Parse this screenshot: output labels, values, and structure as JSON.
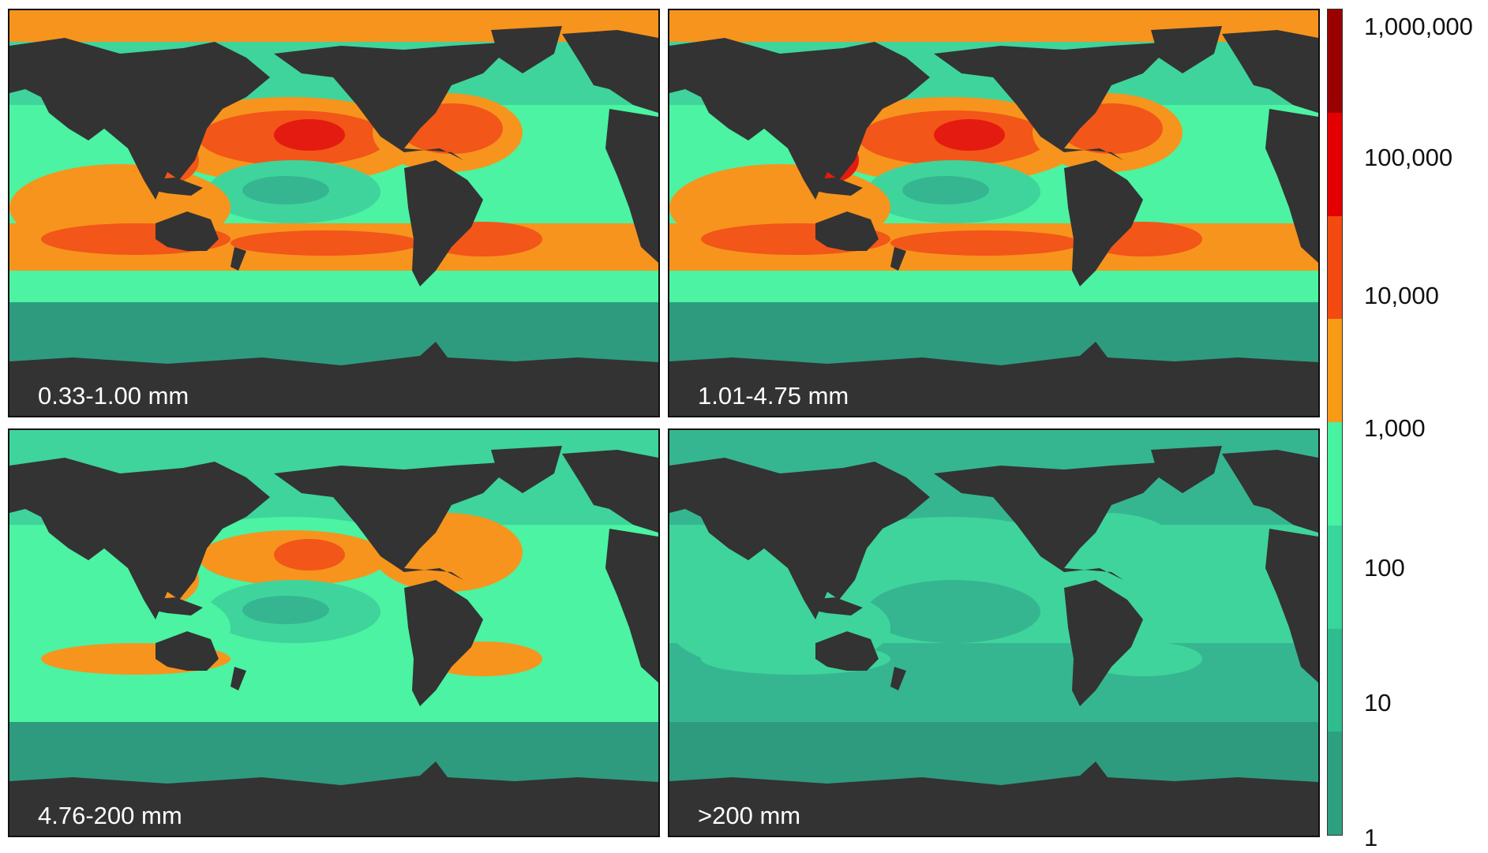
{
  "panels": [
    {
      "label": "0.33-1.00 mm",
      "level": 0
    },
    {
      "label": "1.01-4.75 mm",
      "level": 1
    },
    {
      "label": "4.76-200 mm",
      "level": 2
    },
    {
      "label": ">200 mm",
      "level": 3
    }
  ],
  "colorbar": {
    "ticks": [
      "1,000,000",
      "100,000",
      "10,000",
      "1,000",
      "100",
      "10",
      "1"
    ],
    "colors_top_to_bottom": [
      "#9b0000",
      "#e40000",
      "#f24a10",
      "#f79a16",
      "#47f2a0",
      "#38d69c",
      "#2fbc8f",
      "#2da07f"
    ]
  },
  "colors": {
    "land": "#333333",
    "ocean_levels": [
      "#2e9b7e",
      "#35b690",
      "#3fd49c",
      "#4bf3a2",
      "#f7941d",
      "#f25618",
      "#e41b10",
      "#9b0000"
    ]
  }
}
